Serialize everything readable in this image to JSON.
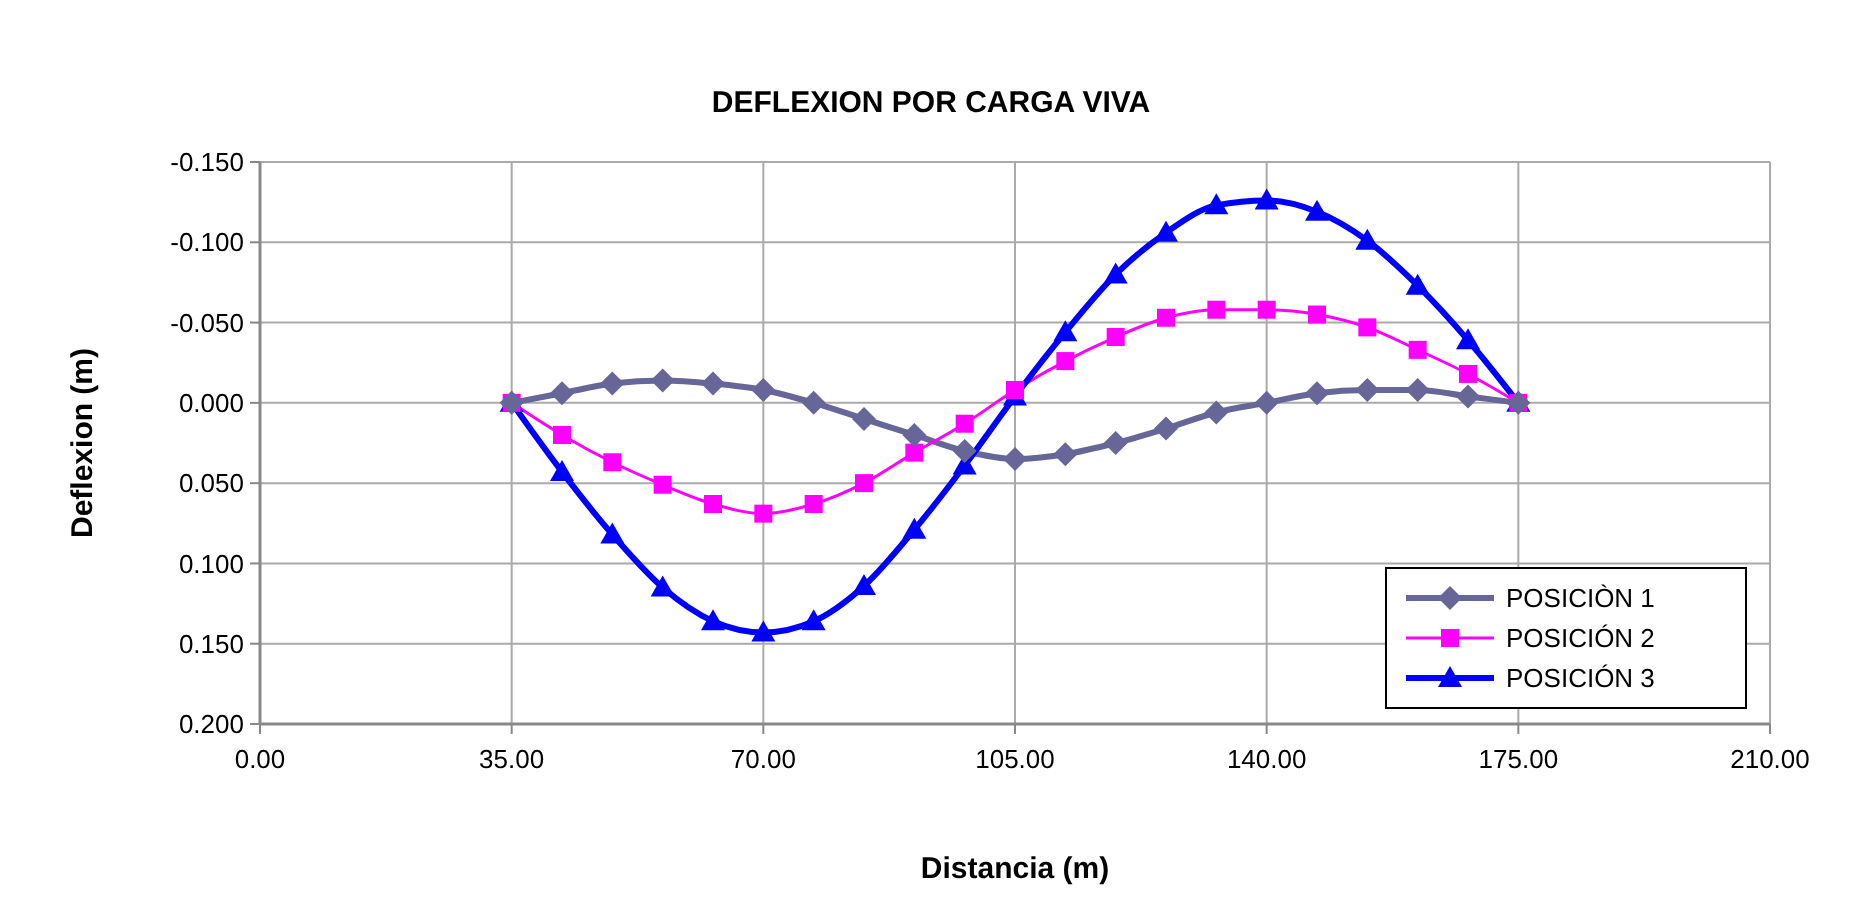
{
  "chart_data": {
    "type": "line",
    "title": "DEFLEXION POR CARGA VIVA",
    "xlabel": "Distancia (m)",
    "ylabel": "Deflexion (m)",
    "x": [
      35,
      42,
      49,
      56,
      63,
      70,
      77,
      84,
      91,
      98,
      105,
      112,
      119,
      126,
      133,
      140,
      147,
      154,
      161,
      168,
      175
    ],
    "series": [
      {
        "name": "POSICIÒN 1",
        "color": "#666699",
        "marker": "diamond",
        "values": [
          0,
          -0.006,
          -0.012,
          -0.014,
          -0.012,
          -0.008,
          0,
          0.01,
          0.02,
          0.03,
          0.035,
          0.032,
          0.025,
          0.016,
          0.006,
          0,
          -0.006,
          -0.008,
          -0.008,
          -0.004,
          0
        ]
      },
      {
        "name": "POSICIÓN 2",
        "color": "#ff00ff",
        "marker": "square",
        "values": [
          0,
          0.02,
          0.037,
          0.051,
          0.063,
          0.069,
          0.063,
          0.05,
          0.031,
          0.013,
          -0.008,
          -0.026,
          -0.041,
          -0.053,
          -0.058,
          -0.058,
          -0.055,
          -0.047,
          -0.033,
          -0.018,
          0
        ]
      },
      {
        "name": "POSICIÓN 3",
        "color": "#0000ff",
        "marker": "triangle",
        "values": [
          0,
          0.043,
          0.082,
          0.115,
          0.136,
          0.143,
          0.136,
          0.114,
          0.079,
          0.039,
          -0.004,
          -0.044,
          -0.08,
          -0.106,
          -0.123,
          -0.126,
          -0.119,
          -0.101,
          -0.073,
          -0.039,
          0
        ]
      }
    ],
    "xlim": [
      0,
      210
    ],
    "xticks": [
      {
        "value": 0,
        "label": "0.00"
      },
      {
        "value": 35,
        "label": "35.00"
      },
      {
        "value": 70,
        "label": "70.00"
      },
      {
        "value": 105,
        "label": "105.00"
      },
      {
        "value": 140,
        "label": "140.00"
      },
      {
        "value": 175,
        "label": "175.00"
      },
      {
        "value": 210,
        "label": "210.00"
      }
    ],
    "ylim": [
      0.2,
      -0.15
    ],
    "yticks": [
      {
        "value": -0.15,
        "label": "-0.150"
      },
      {
        "value": -0.1,
        "label": "-0.100"
      },
      {
        "value": -0.05,
        "label": "-0.050"
      },
      {
        "value": 0,
        "label": "0.000"
      },
      {
        "value": 0.05,
        "label": "0.050"
      },
      {
        "value": 0.1,
        "label": "0.100"
      },
      {
        "value": 0.15,
        "label": "0.150"
      },
      {
        "value": 0.2,
        "label": "0.200"
      }
    ],
    "grid": true,
    "legend": "bottom right"
  }
}
